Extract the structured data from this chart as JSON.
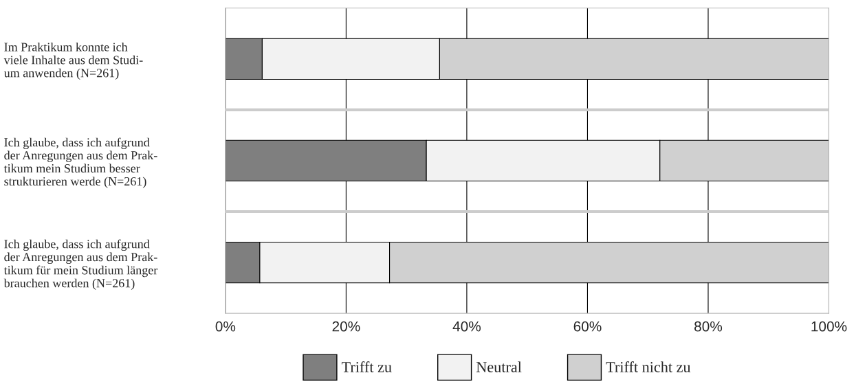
{
  "chart_data": {
    "type": "bar",
    "orientation": "horizontal",
    "stacked": true,
    "categories": [
      "Im Praktikum konnte ich\nviele Inhalte aus dem Studi-\num anwenden (N=261)",
      "Ich glaube, dass ich aufgrund\nder Anregungen aus dem Prak-\ntikum mein Studium besser\nstrukturieren werde (N=261)",
      "Ich glaube, dass ich aufgrund\nder Anregungen aus dem Prak-\ntikum für mein Studium länger\nbrauchen werden (N=261)"
    ],
    "series": [
      {
        "name": "Trifft zu",
        "color": "#7f7f7f",
        "values": [
          6.1,
          33.3,
          5.7
        ]
      },
      {
        "name": "Neutral",
        "color": "#f2f2f2",
        "values": [
          29.4,
          38.7,
          21.5
        ]
      },
      {
        "name": "Trifft nicht zu",
        "color": "#d0d0d0",
        "values": [
          64.5,
          28.0,
          72.8
        ]
      }
    ],
    "xlim": [
      0,
      100
    ],
    "xticks": [
      {
        "value": 0,
        "label": "0%"
      },
      {
        "value": 20,
        "label": "20%"
      },
      {
        "value": 40,
        "label": "40%"
      },
      {
        "value": 60,
        "label": "60%"
      },
      {
        "value": 80,
        "label": "80%"
      },
      {
        "value": 100,
        "label": "100%"
      }
    ],
    "grid": "x",
    "legend": "bottom"
  }
}
